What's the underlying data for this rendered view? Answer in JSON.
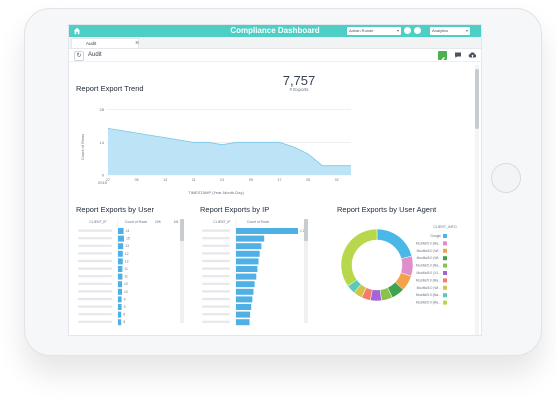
{
  "header": {
    "title": "Compliance Dashboard",
    "user": "Adrian Runde",
    "app": "Analytics"
  },
  "tab": {
    "label": "Audit"
  },
  "page": {
    "title": "Audit"
  },
  "kpi": {
    "value": "7,757",
    "label": "# Exports"
  },
  "colors": {
    "accent": "#4ecfc5",
    "bar": "#4fb0e6",
    "area": "#bde3f6",
    "edit": "#4caf50"
  },
  "icons": {
    "home": "home-icon",
    "refresh": "refresh-icon",
    "edit": "pencil-icon",
    "chat": "chat-icon",
    "cloud": "cloud-upload-icon"
  },
  "chart_data": [
    {
      "type": "area",
      "title": "Report Export Trend",
      "xlabel": "TIMESTAMP (Year-Month-Day)",
      "ylabel": "Count of Rows",
      "x": [
        "27",
        "01",
        "05",
        "09",
        "13",
        "17",
        "21",
        "25",
        "01",
        "05",
        "09",
        "13",
        "17",
        "21",
        "25",
        "29",
        "02",
        "06"
      ],
      "x_extra_label": "2015",
      "y": [
        20,
        19,
        18,
        17,
        16,
        15,
        14,
        14,
        13,
        14,
        14,
        14,
        14,
        12,
        9,
        4,
        4,
        4
      ],
      "ylim": [
        0,
        30
      ],
      "yticks": [
        0,
        14,
        28
      ],
      "grid": true
    },
    {
      "type": "bar",
      "title": "Report Exports by User",
      "column_headers": [
        "CLIENT_IP",
        "Count of Rows",
        "20K",
        "1M"
      ],
      "categories": [
        "",
        "",
        "",
        "",
        "",
        "",
        "",
        "",
        "",
        "",
        "",
        "",
        ""
      ],
      "values": [
        14,
        15,
        13,
        12,
        12,
        11,
        11,
        10,
        10,
        9,
        9,
        8,
        8
      ],
      "value_labels": [
        "14",
        "15",
        "13",
        "12",
        "12",
        "11",
        "11",
        "10",
        "10",
        "9",
        "9",
        "8",
        "8"
      ]
    },
    {
      "type": "bar",
      "title": "Report Exports by IP",
      "column_headers": [
        "CLIENT_IP",
        "Count of Rows"
      ],
      "categories": [
        "",
        "",
        "",
        "",
        "",
        "",
        "",
        "",
        "",
        "",
        "",
        "",
        ""
      ],
      "values": [
        1100,
        500,
        450,
        420,
        400,
        380,
        360,
        330,
        310,
        290,
        270,
        250,
        240
      ],
      "value_labels": [
        "1.1K",
        "",
        "",
        "",
        "",
        "",
        "",
        "",
        "",
        "",
        "",
        "",
        ""
      ]
    },
    {
      "type": "pie",
      "title": "Report Exports by User Agent",
      "legend_title": "CLIENT_INFO",
      "slices": [
        {
          "label": "Google",
          "value": 21,
          "color": "#4ab8e6"
        },
        {
          "label": "Mozilla/5.0 (Ma...",
          "value": 9,
          "color": "#e08dcb"
        },
        {
          "label": "Mozilla/5.0 (Wi...",
          "value": 7,
          "color": "#f3a24a"
        },
        {
          "label": "Mozilla/5.0 (Wi...",
          "value": 6,
          "color": "#3fa34d"
        },
        {
          "label": "Mozilla/5.0 (Ma...",
          "value": 5,
          "color": "#8bc34a"
        },
        {
          "label": "Mozilla/5.0 (X1...",
          "value": 5,
          "color": "#a565d8"
        },
        {
          "label": "Mozilla/5.0 (Ma...",
          "value": 4,
          "color": "#f57c6c"
        },
        {
          "label": "Mozilla/5.0 (Wi...",
          "value": 4,
          "color": "#d4c34a"
        },
        {
          "label": "Mozilla/5.0 (Ma...",
          "value": 4,
          "color": "#5ec9b8"
        },
        {
          "label": "Mozilla/5.0 (Ma...",
          "value": 35,
          "color": "#b7d84a"
        }
      ]
    }
  ]
}
